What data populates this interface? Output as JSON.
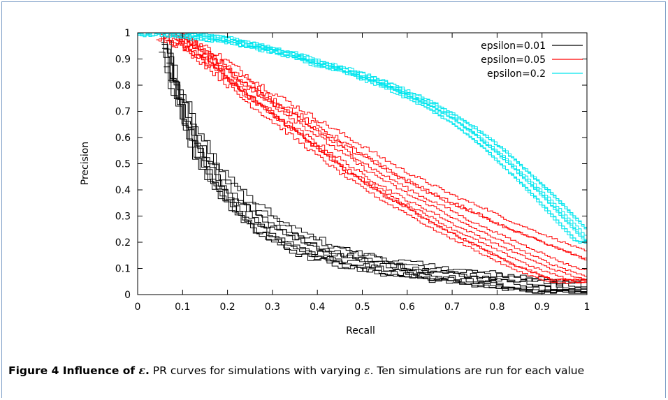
{
  "chart_data": {
    "type": "line",
    "xlabel": "Recall",
    "ylabel": "Precision",
    "xlim": [
      0,
      1
    ],
    "ylim": [
      0,
      1
    ],
    "x_ticks": [
      "0",
      "0.1",
      "0.2",
      "0.3",
      "0.4",
      "0.5",
      "0.6",
      "0.7",
      "0.8",
      "0.9",
      "1"
    ],
    "y_ticks": [
      "0",
      "0.1",
      "0.2",
      "0.3",
      "0.4",
      "0.5",
      "0.6",
      "0.7",
      "0.8",
      "0.9",
      "1"
    ],
    "grid": false,
    "legend_position": "top-right",
    "runs_per_series": 10,
    "series": [
      {
        "name": "epsilon=0.01",
        "color": "#000000",
        "x": [
          0.04,
          0.06,
          0.08,
          0.1,
          0.13,
          0.16,
          0.2,
          0.25,
          0.3,
          0.35,
          0.4,
          0.5,
          0.6,
          0.7,
          0.8,
          0.9,
          1.0
        ],
        "y": [
          1.0,
          0.9,
          0.78,
          0.68,
          0.56,
          0.47,
          0.38,
          0.3,
          0.24,
          0.2,
          0.16,
          0.12,
          0.09,
          0.07,
          0.05,
          0.03,
          0.01
        ]
      },
      {
        "name": "epsilon=0.05",
        "color": "#ff0000",
        "x": [
          0.04,
          0.1,
          0.15,
          0.2,
          0.25,
          0.3,
          0.35,
          0.4,
          0.45,
          0.5,
          0.55,
          0.6,
          0.65,
          0.7,
          0.75,
          0.8,
          0.85,
          0.9,
          0.95,
          1.0
        ],
        "y": [
          1.0,
          0.96,
          0.9,
          0.83,
          0.76,
          0.7,
          0.64,
          0.58,
          0.52,
          0.46,
          0.41,
          0.36,
          0.32,
          0.27,
          0.23,
          0.19,
          0.15,
          0.11,
          0.08,
          0.05
        ]
      },
      {
        "name": "epsilon=0.2",
        "color": "#00e5ee",
        "x": [
          0.0,
          0.05,
          0.1,
          0.15,
          0.2,
          0.25,
          0.3,
          0.35,
          0.4,
          0.45,
          0.5,
          0.55,
          0.6,
          0.65,
          0.7,
          0.75,
          0.8,
          0.85,
          0.9,
          0.95,
          1.0
        ],
        "y": [
          1.0,
          1.0,
          0.99,
          0.98,
          0.97,
          0.95,
          0.93,
          0.91,
          0.88,
          0.86,
          0.83,
          0.8,
          0.76,
          0.72,
          0.67,
          0.61,
          0.54,
          0.46,
          0.38,
          0.29,
          0.2
        ]
      }
    ]
  },
  "caption": {
    "lead_text": "Figure 4 Influence of ",
    "lead_symbol": "ε",
    "lead_end": ".",
    "body_1": " PR curves for simulations with varying ",
    "body_symbol": "ε",
    "body_2": ". Ten simulations are run for each value"
  }
}
